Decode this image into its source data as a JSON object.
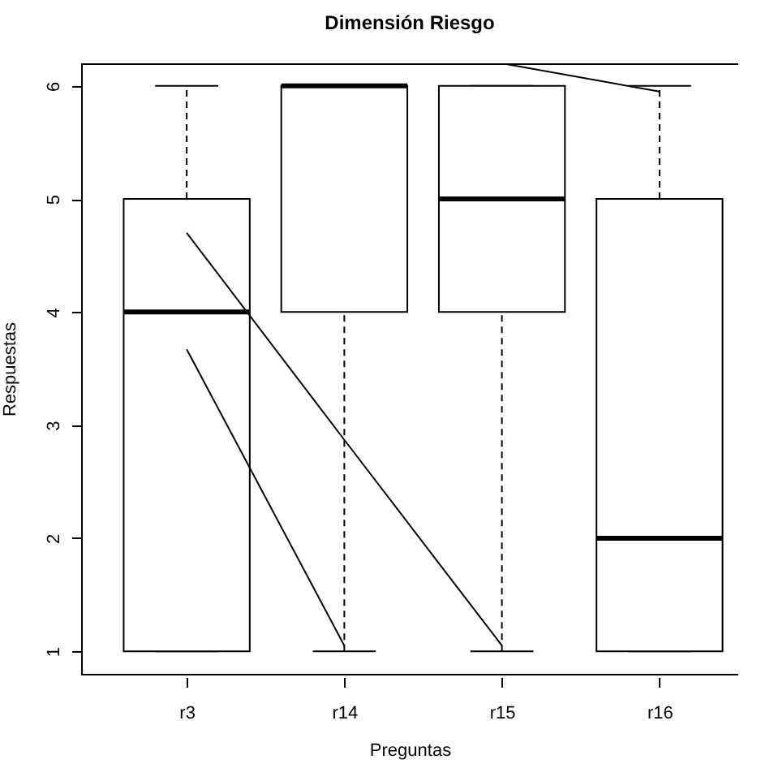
{
  "chart_data": {
    "type": "box",
    "title": "Dimensión Riesgo",
    "xlabel": "Preguntas",
    "ylabel": "Respuestas",
    "categories": [
      "r3",
      "r14",
      "r15",
      "r16"
    ],
    "boxes": [
      {
        "low": 1,
        "q1": 1,
        "median": 4,
        "q3": 5,
        "high": 6
      },
      {
        "low": 1,
        "q1": 4,
        "median": 6,
        "q3": 6,
        "high": 6
      },
      {
        "low": 1,
        "q1": 4,
        "median": 5,
        "q3": 6,
        "high": 6
      },
      {
        "low": 1,
        "q1": 1,
        "median": 2,
        "q3": 5,
        "high": 6
      }
    ],
    "series": [
      {
        "type": "line",
        "color": "#000000",
        "values": [
          3.67,
          1.05,
          null,
          null
        ]
      },
      {
        "type": "line",
        "color": "#000000",
        "values": [
          4.7,
          2.87,
          1.05,
          null
        ]
      },
      {
        "type": "line",
        "color": "#000000",
        "values": [
          null,
          null,
          6.2,
          5.95
        ]
      }
    ],
    "ylim": [
      0.8,
      6.2
    ],
    "yticks": [
      1,
      2,
      3,
      4,
      5,
      6
    ],
    "grid": false
  }
}
